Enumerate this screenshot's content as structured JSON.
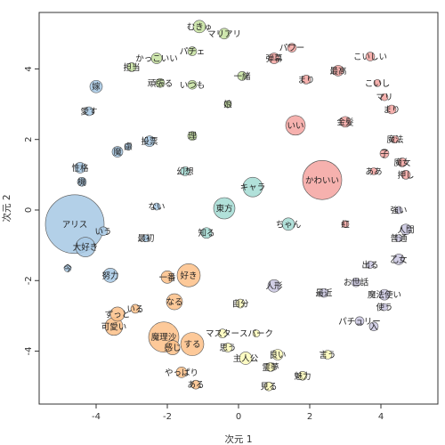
{
  "chart_data": {
    "type": "scatter",
    "title": "",
    "xlabel": "次元 1",
    "ylabel": "次元 2",
    "xlim": [
      -5.6,
      5.6
    ],
    "ylim": [
      -5.5,
      5.6
    ],
    "xticks": [
      -4,
      -2,
      0,
      2,
      4
    ],
    "yticks": [
      -4,
      -2,
      0,
      2,
      4
    ],
    "grid": false,
    "legend": "none",
    "colors": {
      "blue": "#a6c8e4",
      "green": "#c7e3a0",
      "red": "#f5a3a0",
      "purple": "#c9c6e1",
      "yellow": "#fdfab8",
      "orange": "#fdbf87",
      "teal": "#a3dcd3",
      "stroke": "#555555"
    },
    "points": [
      {
        "label": "アリス",
        "x": -4.6,
        "y": -0.4,
        "size": 33,
        "group": "blue"
      },
      {
        "label": "大好き",
        "x": -4.3,
        "y": -1.05,
        "size": 11,
        "group": "blue"
      },
      {
        "label": "いう",
        "x": -3.8,
        "y": -0.6,
        "size": 5,
        "group": "blue"
      },
      {
        "label": "今",
        "x": -4.8,
        "y": -1.65,
        "size": 4,
        "group": "blue"
      },
      {
        "label": "性格",
        "x": -4.45,
        "y": 1.2,
        "size": 6,
        "group": "blue"
      },
      {
        "label": "機",
        "x": -4.4,
        "y": 0.8,
        "size": 5,
        "group": "blue"
      },
      {
        "label": "嫁",
        "x": -4.0,
        "y": 3.5,
        "size": 7,
        "group": "blue"
      },
      {
        "label": "愛す",
        "x": -4.2,
        "y": 2.8,
        "size": 5,
        "group": "blue"
      },
      {
        "label": "魔",
        "x": -3.4,
        "y": 1.65,
        "size": 6,
        "group": "blue"
      },
      {
        "label": "慮",
        "x": -3.1,
        "y": 1.8,
        "size": 4,
        "group": "blue"
      },
      {
        "label": "投票",
        "x": -2.5,
        "y": 1.95,
        "size": 6,
        "group": "blue"
      },
      {
        "label": "ない",
        "x": -2.3,
        "y": 0.1,
        "size": 4,
        "group": "blue"
      },
      {
        "label": "最初",
        "x": -2.6,
        "y": -0.8,
        "size": 4,
        "group": "blue"
      },
      {
        "label": "努力",
        "x": -3.6,
        "y": -1.85,
        "size": 8,
        "group": "blue"
      },
      {
        "label": "むきゅ",
        "x": -1.1,
        "y": 5.2,
        "size": 7,
        "group": "green"
      },
      {
        "label": "マリアリ",
        "x": -0.4,
        "y": 5.0,
        "size": 6,
        "group": "green"
      },
      {
        "label": "パチェ",
        "x": -1.3,
        "y": 4.5,
        "size": 5,
        "group": "green"
      },
      {
        "label": "かっこいい",
        "x": -2.3,
        "y": 4.3,
        "size": 6,
        "group": "green"
      },
      {
        "label": "担当",
        "x": -3.0,
        "y": 4.05,
        "size": 5,
        "group": "green"
      },
      {
        "label": "頑張る",
        "x": -2.2,
        "y": 3.6,
        "size": 5,
        "group": "green"
      },
      {
        "label": "いつも",
        "x": -1.3,
        "y": 3.55,
        "size": 5,
        "group": "green"
      },
      {
        "label": "一緒",
        "x": 0.1,
        "y": 3.8,
        "size": 5,
        "group": "green"
      },
      {
        "label": "娘",
        "x": -0.3,
        "y": 3.0,
        "size": 4,
        "group": "green"
      },
      {
        "label": "理",
        "x": -1.3,
        "y": 2.1,
        "size": 5,
        "group": "green"
      },
      {
        "label": "パワー",
        "x": 1.5,
        "y": 4.6,
        "size": 5,
        "group": "red"
      },
      {
        "label": "弾幕",
        "x": 1.0,
        "y": 4.3,
        "size": 6,
        "group": "red"
      },
      {
        "label": "まり",
        "x": 1.9,
        "y": 3.7,
        "size": 5,
        "group": "red"
      },
      {
        "label": "最高",
        "x": 2.8,
        "y": 3.95,
        "size": 6,
        "group": "red"
      },
      {
        "label": "こいしい",
        "x": 3.7,
        "y": 4.35,
        "size": 5,
        "group": "red"
      },
      {
        "label": "こいし",
        "x": 3.9,
        "y": 3.6,
        "size": 4,
        "group": "red"
      },
      {
        "label": "マリ",
        "x": 4.1,
        "y": 3.2,
        "size": 4,
        "group": "red"
      },
      {
        "label": "まり",
        "x": 4.3,
        "y": 2.85,
        "size": 5,
        "group": "red"
      },
      {
        "label": "いい",
        "x": 1.6,
        "y": 2.4,
        "size": 11,
        "group": "red"
      },
      {
        "label": "金髪",
        "x": 3.0,
        "y": 2.5,
        "size": 6,
        "group": "red"
      },
      {
        "label": "魔法",
        "x": 4.4,
        "y": 2.0,
        "size": 4,
        "group": "red"
      },
      {
        "label": "子",
        "x": 4.1,
        "y": 1.6,
        "size": 5,
        "group": "red"
      },
      {
        "label": "魔女",
        "x": 4.6,
        "y": 1.35,
        "size": 5,
        "group": "red"
      },
      {
        "label": "ああ",
        "x": 3.8,
        "y": 1.1,
        "size": 4,
        "group": "red"
      },
      {
        "label": "押し",
        "x": 4.7,
        "y": 1.0,
        "size": 5,
        "group": "red"
      },
      {
        "label": "かわいい",
        "x": 2.35,
        "y": 0.85,
        "size": 22,
        "group": "red"
      },
      {
        "label": "紅",
        "x": 3.0,
        "y": -0.4,
        "size": 4,
        "group": "red"
      },
      {
        "label": "キャラ",
        "x": 0.4,
        "y": 0.65,
        "size": 11,
        "group": "teal"
      },
      {
        "label": "幻想",
        "x": -1.5,
        "y": 1.1,
        "size": 5,
        "group": "teal"
      },
      {
        "label": "東方",
        "x": -0.4,
        "y": 0.05,
        "size": 12,
        "group": "teal"
      },
      {
        "label": "知る",
        "x": -0.9,
        "y": -0.65,
        "size": 6,
        "group": "teal"
      },
      {
        "label": "ちゃん",
        "x": 1.4,
        "y": -0.4,
        "size": 7,
        "group": "teal"
      },
      {
        "label": "強い",
        "x": 4.5,
        "y": 0.0,
        "size": 4,
        "group": "purple"
      },
      {
        "label": "人間",
        "x": 4.7,
        "y": -0.55,
        "size": 6,
        "group": "purple"
      },
      {
        "label": "普通",
        "x": 4.5,
        "y": -0.8,
        "size": 4,
        "group": "purple"
      },
      {
        "label": "出る",
        "x": 3.7,
        "y": -1.55,
        "size": 4,
        "group": "purple"
      },
      {
        "label": "乙女",
        "x": 4.5,
        "y": -1.4,
        "size": 6,
        "group": "purple"
      },
      {
        "label": "人形",
        "x": 1.0,
        "y": -2.15,
        "size": 7,
        "group": "purple"
      },
      {
        "label": "お世話",
        "x": 3.3,
        "y": -2.05,
        "size": 5,
        "group": "purple"
      },
      {
        "label": "最近",
        "x": 2.4,
        "y": -2.35,
        "size": 5,
        "group": "purple"
      },
      {
        "label": "魔法使い",
        "x": 4.1,
        "y": -2.4,
        "size": 6,
        "group": "purple"
      },
      {
        "label": "使う",
        "x": 4.1,
        "y": -2.75,
        "size": 4,
        "group": "purple"
      },
      {
        "label": "パチュリー",
        "x": 3.4,
        "y": -3.15,
        "size": 5,
        "group": "purple"
      },
      {
        "label": "入",
        "x": 3.8,
        "y": -3.3,
        "size": 5,
        "group": "purple"
      },
      {
        "label": "自分",
        "x": 0.05,
        "y": -2.65,
        "size": 5,
        "group": "yellow"
      },
      {
        "label": "マスター",
        "x": -0.45,
        "y": -3.5,
        "size": 5,
        "group": "yellow"
      },
      {
        "label": "スパーク",
        "x": 0.5,
        "y": -3.5,
        "size": 4,
        "group": "yellow"
      },
      {
        "label": "思う",
        "x": -0.3,
        "y": -3.9,
        "size": 5,
        "group": "yellow"
      },
      {
        "label": "主人公",
        "x": 0.2,
        "y": -4.2,
        "size": 7,
        "group": "yellow"
      },
      {
        "label": "良い",
        "x": 1.1,
        "y": -4.1,
        "size": 6,
        "group": "yellow"
      },
      {
        "label": "言う",
        "x": 2.5,
        "y": -4.1,
        "size": 5,
        "group": "yellow"
      },
      {
        "label": "霊夢",
        "x": 0.9,
        "y": -4.45,
        "size": 5,
        "group": "yellow"
      },
      {
        "label": "魅力",
        "x": 1.8,
        "y": -4.7,
        "size": 5,
        "group": "yellow"
      },
      {
        "label": "見る",
        "x": 0.85,
        "y": -5.0,
        "size": 5,
        "group": "yellow"
      },
      {
        "label": "好き",
        "x": -1.4,
        "y": -1.85,
        "size": 13,
        "group": "orange"
      },
      {
        "label": "一番",
        "x": -2.0,
        "y": -1.9,
        "size": 7,
        "group": "orange"
      },
      {
        "label": "なる",
        "x": -1.8,
        "y": -2.6,
        "size": 9,
        "group": "orange"
      },
      {
        "label": "いる",
        "x": -2.9,
        "y": -2.8,
        "size": 5,
        "group": "orange"
      },
      {
        "label": "ずっと",
        "x": -3.4,
        "y": -2.95,
        "size": 8,
        "group": "orange"
      },
      {
        "label": "可愛い",
        "x": -3.5,
        "y": -3.3,
        "size": 10,
        "group": "orange"
      },
      {
        "label": "魔理沙",
        "x": -2.1,
        "y": -3.6,
        "size": 17,
        "group": "orange"
      },
      {
        "label": "感じ",
        "x": -1.85,
        "y": -3.9,
        "size": 8,
        "group": "orange"
      },
      {
        "label": "する",
        "x": -1.3,
        "y": -3.8,
        "size": 13,
        "group": "orange"
      },
      {
        "label": "やっぱり",
        "x": -1.6,
        "y": -4.6,
        "size": 6,
        "group": "orange"
      },
      {
        "label": "ある",
        "x": -1.2,
        "y": -4.95,
        "size": 5,
        "group": "orange"
      }
    ]
  }
}
